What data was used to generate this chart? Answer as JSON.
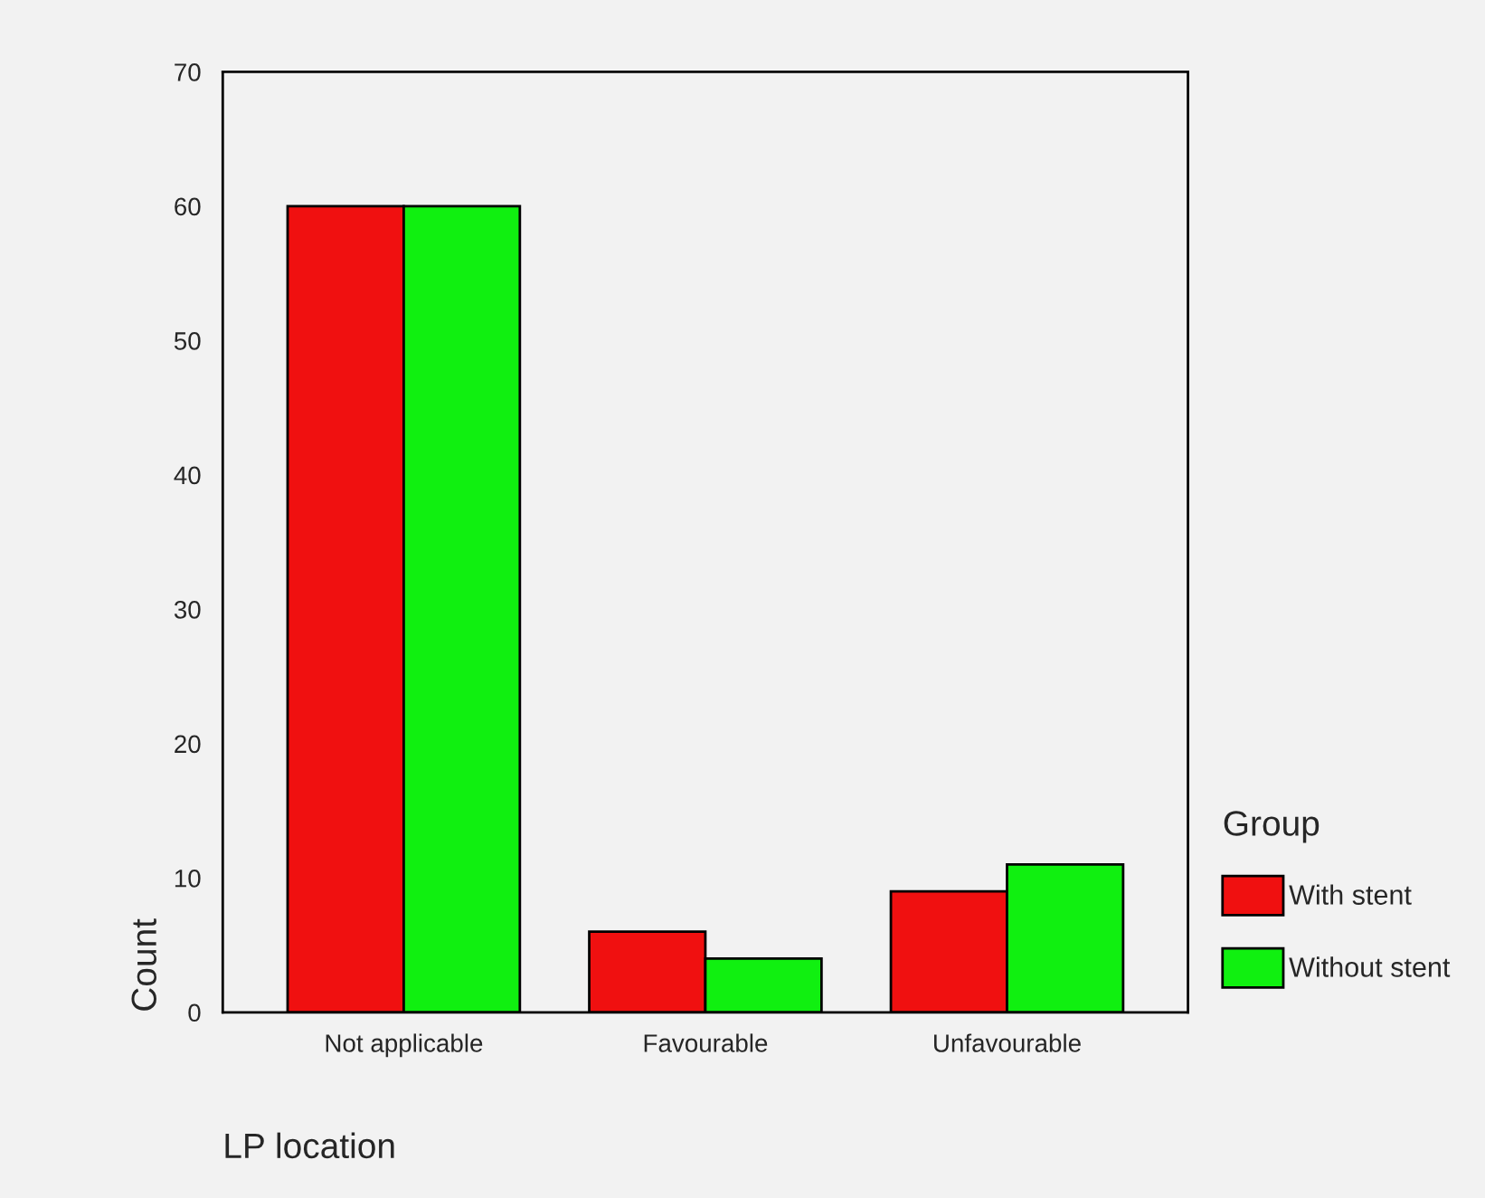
{
  "chart_data": {
    "type": "bar",
    "xlabel": "LP location",
    "ylabel": "Count",
    "legend_title": "Group",
    "categories": [
      "Not applicable",
      "Favourable",
      "Unfavourable"
    ],
    "series": [
      {
        "name": "With stent",
        "color": "#f01010",
        "values": [
          60,
          6,
          9
        ]
      },
      {
        "name": "Without stent",
        "color": "#10f010",
        "values": [
          60,
          4,
          11
        ]
      }
    ],
    "ylim": [
      0,
      70
    ],
    "yticks": [
      0,
      10,
      20,
      30,
      40,
      50,
      60,
      70
    ],
    "grid": false,
    "legend": "right"
  }
}
